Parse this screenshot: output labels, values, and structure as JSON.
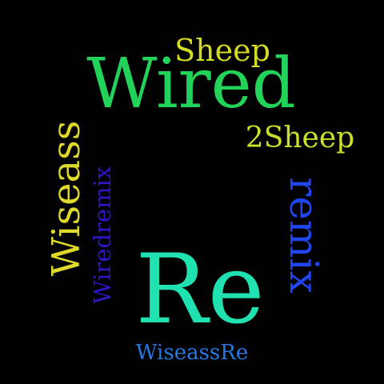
{
  "background": "#000000",
  "words": {
    "wired": {
      "text": "Wired",
      "color": "#22d35a"
    },
    "sheep": {
      "text": "Sheep",
      "color": "#d4dc22"
    },
    "two_sheep": {
      "text": "2Sheep",
      "color": "#c9df28"
    },
    "re": {
      "text": "Re",
      "color": "#1fe2b0"
    },
    "wiseass": {
      "text": "Wiseass",
      "color": "#ddd82a"
    },
    "wiredremix": {
      "text": "Wiredremix",
      "color": "#2d16c8"
    },
    "remix": {
      "text": "remix",
      "color": "#1f46f0"
    },
    "wiseassre": {
      "text": "WiseassRe",
      "color": "#2378e5"
    }
  }
}
